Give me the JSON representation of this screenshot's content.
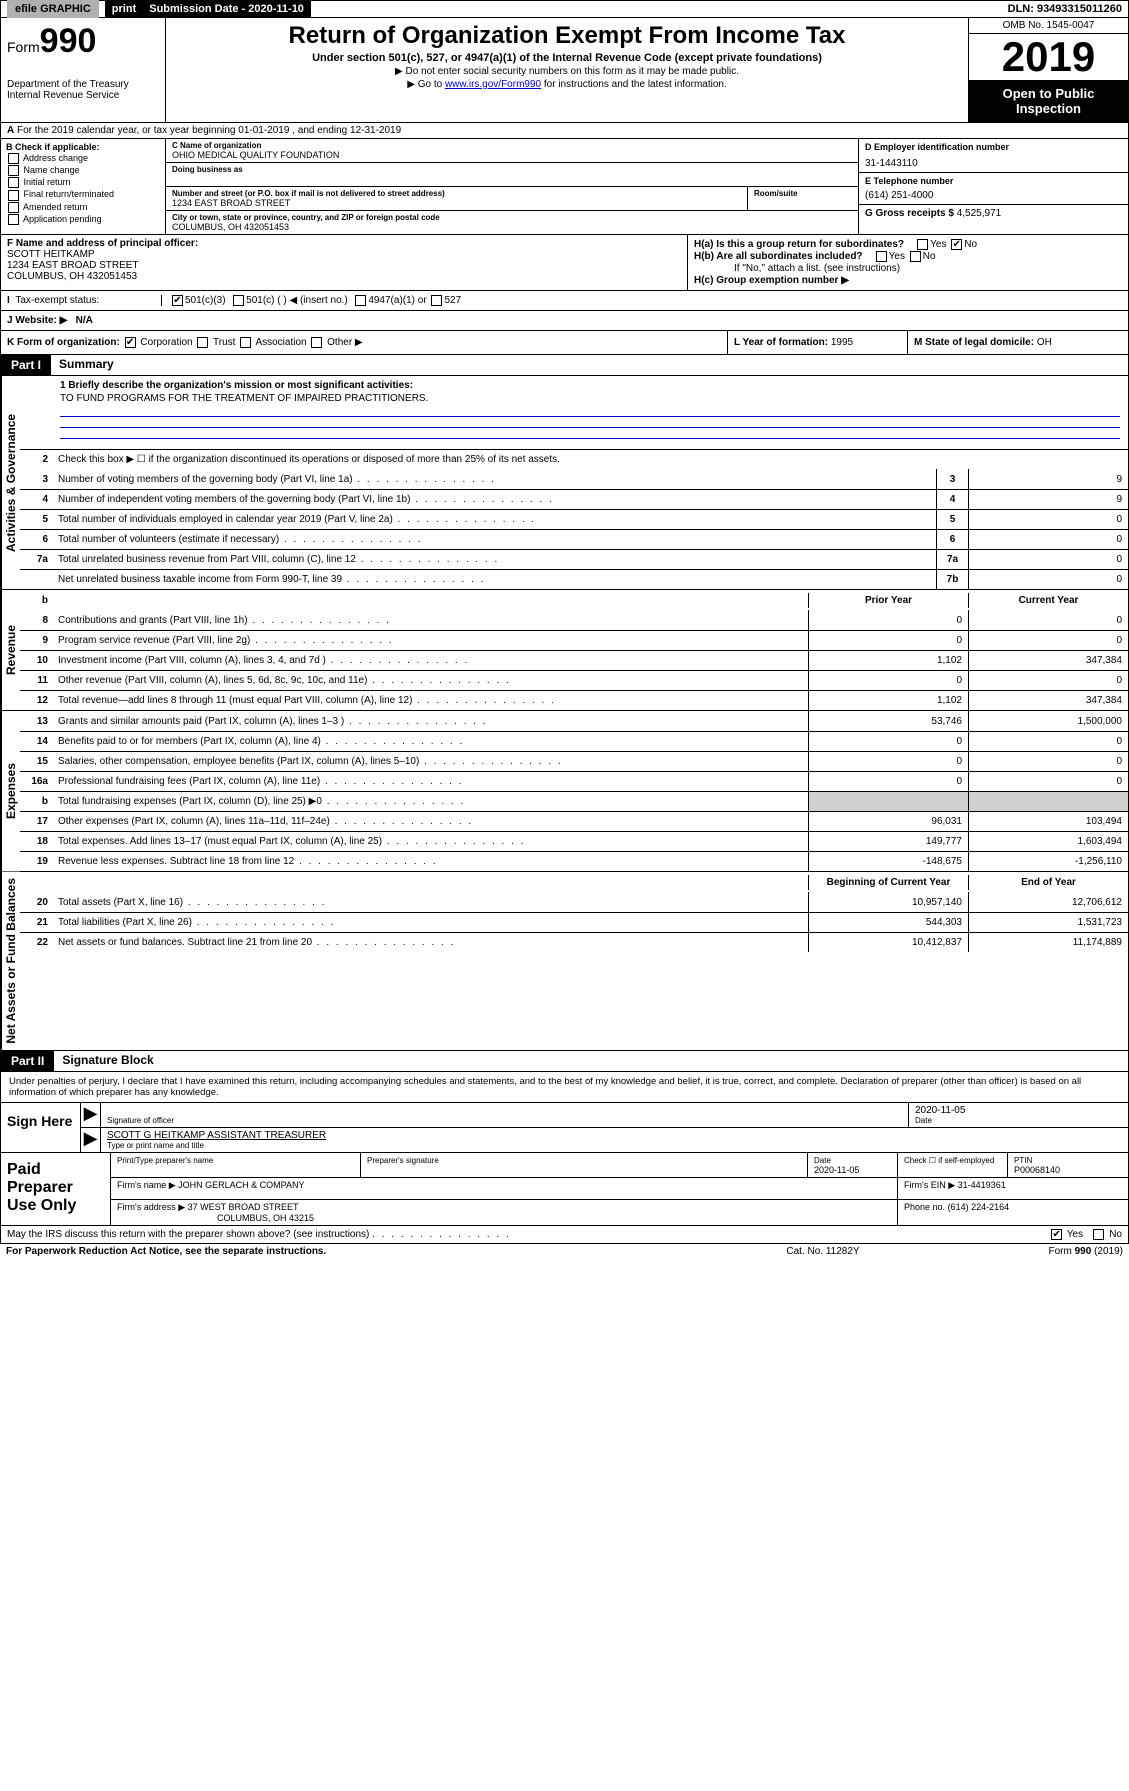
{
  "topbar": {
    "efile": "efile GRAPHIC",
    "print": "print",
    "submission_label": "Submission Date - 2020-11-10",
    "dln": "DLN: 93493315011260"
  },
  "header": {
    "form_prefix": "Form",
    "form_number": "990",
    "dept": "Department of the Treasury",
    "irs": "Internal Revenue Service",
    "title": "Return of Organization Exempt From Income Tax",
    "subtitle": "Under section 501(c), 527, or 4947(a)(1) of the Internal Revenue Code (except private foundations)",
    "note1": "▶ Do not enter social security numbers on this form as it may be made public.",
    "note2_pre": "▶ Go to ",
    "note2_link": "www.irs.gov/Form990",
    "note2_post": " for instructions and the latest information.",
    "omb": "OMB No. 1545-0047",
    "year": "2019",
    "open": "Open to Public Inspection"
  },
  "rowA": "For the 2019 calendar year, or tax year beginning 01-01-2019   , and ending 12-31-2019",
  "boxB": {
    "label": "B Check if applicable:",
    "opts": [
      "Address change",
      "Name change",
      "Initial return",
      "Final return/terminated",
      "Amended return",
      "Application pending"
    ]
  },
  "boxC": {
    "name_label": "C Name of organization",
    "name": "OHIO MEDICAL QUALITY FOUNDATION",
    "dba_label": "Doing business as",
    "addr_label": "Number and street (or P.O. box if mail is not delivered to street address)",
    "room_label": "Room/suite",
    "addr": "1234 EAST BROAD STREET",
    "city_label": "City or town, state or province, country, and ZIP or foreign postal code",
    "city": "COLUMBUS, OH  432051453"
  },
  "boxD": {
    "label": "D Employer identification number",
    "val": "31-1443110"
  },
  "boxE": {
    "label": "E Telephone number",
    "val": "(614) 251-4000"
  },
  "boxG": {
    "label": "G Gross receipts $",
    "val": "4,525,971"
  },
  "boxF": {
    "label": "F  Name and address of principal officer:",
    "name": "SCOTT HEITKAMP",
    "addr1": "1234 EAST BROAD STREET",
    "addr2": "COLUMBUS, OH  432051453"
  },
  "boxH": {
    "a": "H(a)  Is this a group return for subordinates?",
    "b": "H(b)  Are all subordinates included?",
    "b_note": "If \"No,\" attach a list. (see instructions)",
    "c": "H(c)  Group exemption number ▶",
    "yes": "Yes",
    "no": "No"
  },
  "taxStatus": {
    "label": "Tax-exempt status:",
    "c3": "501(c)(3)",
    "c": "501(c) (  ) ◀ (insert no.)",
    "a1": "4947(a)(1) or",
    "527": "527"
  },
  "rowJ": {
    "label": "J  Website: ▶",
    "val": "N/A"
  },
  "rowK": {
    "left": "K Form of organization:",
    "corp": "Corporation",
    "trust": "Trust",
    "assoc": "Association",
    "other": "Other ▶",
    "mid_label": "L Year of formation:",
    "mid_val": "1995",
    "right_label": "M State of legal domicile:",
    "right_val": "OH"
  },
  "part1": {
    "header": "Part I",
    "title": "Summary",
    "line1_label": "1  Briefly describe the organization's mission or most significant activities:",
    "line1_val": "TO FUND PROGRAMS FOR THE TREATMENT OF IMPAIRED PRACTITIONERS.",
    "line2": "Check this box ▶ ☐  if the organization discontinued its operations or disposed of more than 25% of its net assets.",
    "rows_single": [
      {
        "n": "3",
        "t": "Number of voting members of the governing body (Part VI, line 1a)",
        "c": "3",
        "v": "9"
      },
      {
        "n": "4",
        "t": "Number of independent voting members of the governing body (Part VI, line 1b)",
        "c": "4",
        "v": "9"
      },
      {
        "n": "5",
        "t": "Total number of individuals employed in calendar year 2019 (Part V, line 2a)",
        "c": "5",
        "v": "0"
      },
      {
        "n": "6",
        "t": "Total number of volunteers (estimate if necessary)",
        "c": "6",
        "v": "0"
      },
      {
        "n": "7a",
        "t": "Total unrelated business revenue from Part VIII, column (C), line 12",
        "c": "7a",
        "v": "0"
      },
      {
        "n": "",
        "t": "Net unrelated business taxable income from Form 990-T, line 39",
        "c": "7b",
        "v": "0"
      }
    ],
    "col_prior": "Prior Year",
    "col_current": "Current Year",
    "revenue": [
      {
        "n": "8",
        "t": "Contributions and grants (Part VIII, line 1h)",
        "p": "0",
        "c": "0"
      },
      {
        "n": "9",
        "t": "Program service revenue (Part VIII, line 2g)",
        "p": "0",
        "c": "0"
      },
      {
        "n": "10",
        "t": "Investment income (Part VIII, column (A), lines 3, 4, and 7d )",
        "p": "1,102",
        "c": "347,384"
      },
      {
        "n": "11",
        "t": "Other revenue (Part VIII, column (A), lines 5, 6d, 8c, 9c, 10c, and 11e)",
        "p": "0",
        "c": "0"
      },
      {
        "n": "12",
        "t": "Total revenue—add lines 8 through 11 (must equal Part VIII, column (A), line 12)",
        "p": "1,102",
        "c": "347,384"
      }
    ],
    "expenses": [
      {
        "n": "13",
        "t": "Grants and similar amounts paid (Part IX, column (A), lines 1–3 )",
        "p": "53,746",
        "c": "1,500,000"
      },
      {
        "n": "14",
        "t": "Benefits paid to or for members (Part IX, column (A), line 4)",
        "p": "0",
        "c": "0"
      },
      {
        "n": "15",
        "t": "Salaries, other compensation, employee benefits (Part IX, column (A), lines 5–10)",
        "p": "0",
        "c": "0"
      },
      {
        "n": "16a",
        "t": "Professional fundraising fees (Part IX, column (A), line 11e)",
        "p": "0",
        "c": "0"
      },
      {
        "n": "b",
        "t": "Total fundraising expenses (Part IX, column (D), line 25) ▶0",
        "p": "",
        "c": "",
        "shade": true
      },
      {
        "n": "17",
        "t": "Other expenses (Part IX, column (A), lines 11a–11d, 11f–24e)",
        "p": "96,031",
        "c": "103,494"
      },
      {
        "n": "18",
        "t": "Total expenses. Add lines 13–17 (must equal Part IX, column (A), line 25)",
        "p": "149,777",
        "c": "1,603,494"
      },
      {
        "n": "19",
        "t": "Revenue less expenses. Subtract line 18 from line 12",
        "p": "-148,675",
        "c": "-1,256,110"
      }
    ],
    "col_begin": "Beginning of Current Year",
    "col_end": "End of Year",
    "netassets": [
      {
        "n": "20",
        "t": "Total assets (Part X, line 16)",
        "p": "10,957,140",
        "c": "12,706,612"
      },
      {
        "n": "21",
        "t": "Total liabilities (Part X, line 26)",
        "p": "544,303",
        "c": "1,531,723"
      },
      {
        "n": "22",
        "t": "Net assets or fund balances. Subtract line 21 from line 20",
        "p": "10,412,837",
        "c": "11,174,889"
      }
    ],
    "vtab_gov": "Activities & Governance",
    "vtab_rev": "Revenue",
    "vtab_exp": "Expenses",
    "vtab_net": "Net Assets or Fund Balances"
  },
  "part2": {
    "header": "Part II",
    "title": "Signature Block",
    "perjury": "Under penalties of perjury, I declare that I have examined this return, including accompanying schedules and statements, and to the best of my knowledge and belief, it is true, correct, and complete. Declaration of preparer (other than officer) is based on all information of which preparer has any knowledge.",
    "sign_here": "Sign Here",
    "sig_officer": "Signature of officer",
    "date_val": "2020-11-05",
    "date_label": "Date",
    "officer_name": "SCOTT G HEITKAMP  ASSISTANT TREASURER",
    "type_name": "Type or print name and title",
    "paid": "Paid Preparer Use Only",
    "prep_name_label": "Print/Type preparer's name",
    "prep_sig_label": "Preparer's signature",
    "prep_date_label": "Date",
    "prep_date": "2020-11-05",
    "check_if": "Check ☐ if self-employed",
    "ptin_label": "PTIN",
    "ptin": "P00068140",
    "firm_name_label": "Firm's name   ▶",
    "firm_name": "JOHN GERLACH & COMPANY",
    "firm_ein_label": "Firm's EIN ▶",
    "firm_ein": "31-4419361",
    "firm_addr_label": "Firm's address ▶",
    "firm_addr1": "37 WEST BROAD STREET",
    "firm_addr2": "COLUMBUS, OH  43215",
    "phone_label": "Phone no.",
    "phone": "(614) 224-2164"
  },
  "footer": {
    "discuss": "May the IRS discuss this return with the preparer shown above? (see instructions)",
    "yes": "Yes",
    "no": "No",
    "paperwork": "For Paperwork Reduction Act Notice, see the separate instructions.",
    "cat": "Cat. No. 11282Y",
    "form": "Form 990 (2019)"
  },
  "colors": {
    "link": "#0000cc",
    "black": "#000000",
    "shade": "#d0d0d0",
    "grey_btn": "#b0b0b0"
  }
}
